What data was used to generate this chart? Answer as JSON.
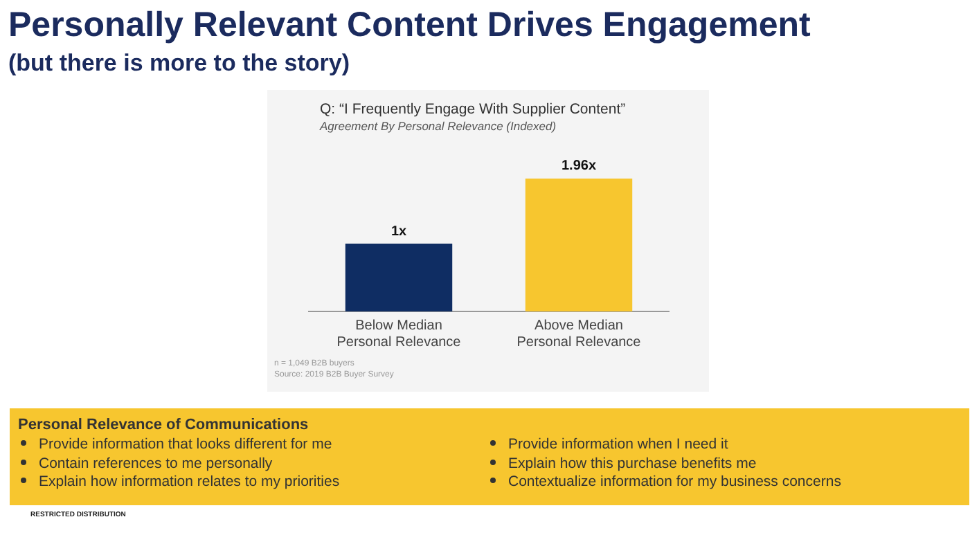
{
  "chart_data": {
    "type": "bar",
    "title": "Personally Relevant Content Drives Engagement",
    "subtitle": "(but there is more to the story)",
    "categories": [
      "Below Median Personal Relevance",
      "Above Median Personal Relevance"
    ],
    "values": [
      1,
      1.96
    ],
    "colors": [
      "#0f2d63",
      "#f7c62f"
    ],
    "value_labels": [
      "1x",
      "1.96x"
    ],
    "tick_labels": "x",
    "grid": false,
    "legend": false,
    "annotations": [
      "Q: “I Frequently Engage With Supplier Content”",
      "Agreement By Personal Relevance (Indexed)",
      "n = 1,049 B2B buyers",
      "Source: 2019 B2B Buyer Survey",
      "Personal Relevance of Communications",
      "Provide information that looks different for me",
      "Contain references to me personally",
      "Explain how information relates to my priorities",
      "Provide information when I need it",
      "Explain how this purchase benefits me",
      "Contextualize information for my business concerns",
      "RESTRICTED DISTRIBUTION"
    ]
  }
}
